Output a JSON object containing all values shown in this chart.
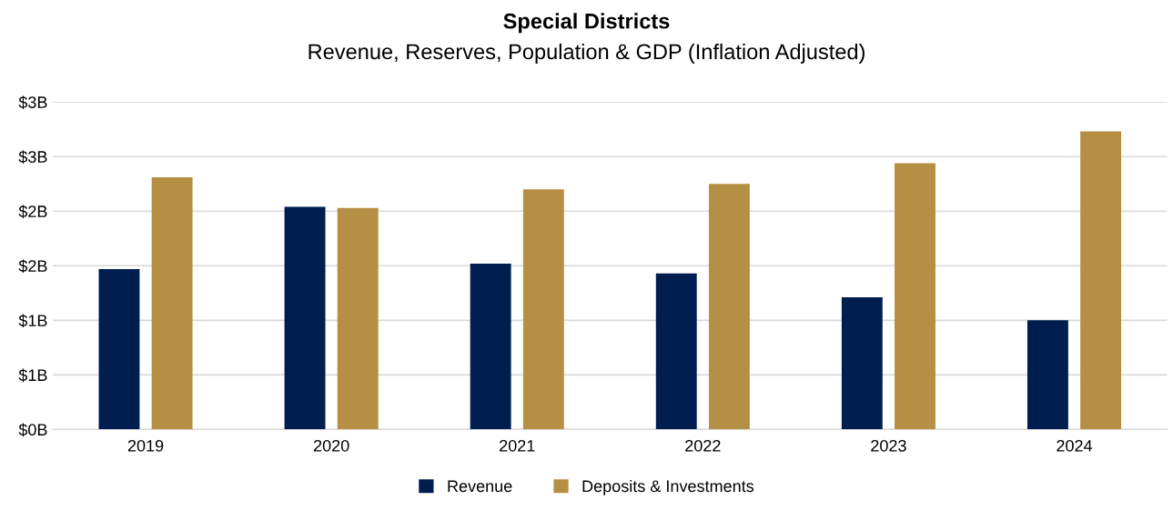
{
  "chart_data": {
    "type": "bar",
    "title": "Special Districts",
    "subtitle": "Revenue, Reserves, Population & GDP (Inflation Adjusted)",
    "categories": [
      "2019",
      "2020",
      "2021",
      "2022",
      "2023",
      "2024"
    ],
    "series": [
      {
        "name": "Revenue",
        "color": "#001d4f",
        "values": [
          1.47,
          2.04,
          1.52,
          1.43,
          1.21,
          1.0
        ]
      },
      {
        "name": "Deposits & Investments",
        "color": "#b58f43",
        "values": [
          2.31,
          2.03,
          2.2,
          2.25,
          2.44,
          2.73
        ]
      }
    ],
    "ylim": [
      0,
      3
    ],
    "yticks": [
      {
        "value": 0,
        "label": "$0B"
      },
      {
        "value": 0.5,
        "label": "$1B"
      },
      {
        "value": 1,
        "label": "$1B"
      },
      {
        "value": 1.5,
        "label": "$2B"
      },
      {
        "value": 2,
        "label": "$2B"
      },
      {
        "value": 2.5,
        "label": "$3B"
      },
      {
        "value": 3,
        "label": "$3B"
      }
    ],
    "grid": "y",
    "legend": "bottom"
  }
}
